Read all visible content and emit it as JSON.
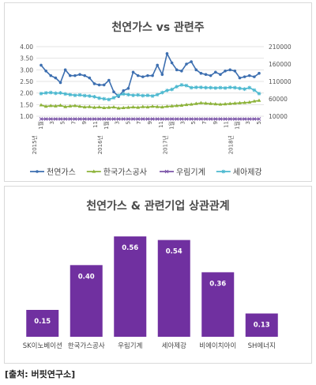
{
  "chart_data": [
    {
      "type": "line",
      "title": "천연가스 vs 관련주",
      "y_left": {
        "ticks": [
          "4.00",
          "3.50",
          "3.00",
          "2.50",
          "2.00",
          "1.50",
          "1.00"
        ],
        "min": 1.0,
        "max": 4.0
      },
      "y_right": {
        "ticks": [
          "210000",
          "160000",
          "110000",
          "60000",
          "10000"
        ],
        "min": 10000,
        "max": 210000
      },
      "x_tick_labels": [
        "1월",
        "3",
        "5",
        "7",
        "9",
        "11",
        "1월",
        "3",
        "5",
        "7",
        "9",
        "11",
        "1월",
        "3",
        "5",
        "7",
        "9",
        "11",
        "1월",
        "3",
        "5"
      ],
      "year_labels": [
        {
          "label": "2015년",
          "index": 0
        },
        {
          "label": "2016년",
          "index": 12
        },
        {
          "label": "2017년",
          "index": 24
        },
        {
          "label": "2018년",
          "index": 36
        }
      ],
      "legend_position": "bottom",
      "series": [
        {
          "name": "천연가스",
          "axis": "left",
          "color": "#3d6fb0",
          "marker": "circle",
          "values": [
            3.2,
            2.95,
            2.75,
            2.65,
            2.45,
            3.0,
            2.75,
            2.75,
            2.8,
            2.75,
            2.65,
            2.4,
            2.35,
            2.35,
            2.55,
            2.05,
            1.85,
            2.1,
            2.2,
            2.9,
            2.75,
            2.7,
            2.75,
            2.75,
            3.2,
            2.8,
            3.7,
            3.3,
            3.0,
            2.95,
            3.25,
            3.35,
            3.0,
            2.85,
            2.8,
            2.75,
            2.9,
            2.8,
            2.95,
            3.0,
            2.95,
            2.65,
            2.7,
            2.75,
            2.7,
            2.85
          ]
        },
        {
          "name": "한국가스공사",
          "axis": "right",
          "color": "#8db33a",
          "marker": "triangle",
          "values": [
            42000,
            38000,
            40000,
            39000,
            41000,
            37000,
            39000,
            40000,
            38000,
            36000,
            37000,
            35000,
            36000,
            34000,
            35000,
            36000,
            33000,
            34000,
            35000,
            36000,
            35000,
            37000,
            36000,
            38000,
            37000,
            36000,
            38000,
            39000,
            40000,
            41000,
            43000,
            44000,
            46000,
            48000,
            47000,
            46000,
            45000,
            44000,
            45000,
            46000,
            47000,
            48000,
            49000,
            50000,
            53000,
            55000
          ]
        },
        {
          "name": "우림기계",
          "axis": "right",
          "color": "#7b55a8",
          "marker": "x",
          "values": [
            2000,
            2000,
            2000,
            2000,
            2000,
            2000,
            2000,
            2000,
            2000,
            2000,
            2000,
            2000,
            2000,
            2000,
            2000,
            2000,
            2000,
            2000,
            2000,
            2000,
            2000,
            2000,
            2000,
            2000,
            2000,
            2000,
            2000,
            2000,
            2000,
            2000,
            2000,
            2000,
            2000,
            2000,
            2000,
            2000,
            2000,
            2000,
            2000,
            2000,
            2000,
            2000,
            2000,
            2000,
            2000,
            2000
          ]
        },
        {
          "name": "세아제강",
          "axis": "right",
          "color": "#4bb8cf",
          "marker": "star",
          "values": [
            75000,
            77000,
            78000,
            76000,
            77000,
            74000,
            72000,
            70000,
            71000,
            69000,
            68000,
            66000,
            62000,
            60000,
            58000,
            63000,
            70000,
            74000,
            72000,
            70000,
            71000,
            69000,
            70000,
            68000,
            72000,
            78000,
            84000,
            87000,
            95000,
            100000,
            98000,
            92000,
            93000,
            93000,
            92000,
            92000,
            91000,
            92000,
            91000,
            93000,
            92000,
            90000,
            88000,
            92000,
            85000,
            75000
          ]
        }
      ]
    },
    {
      "type": "bar",
      "title": "천연가스 & 관련기업 상관관계",
      "categories": [
        "SK이노베이션",
        "한국가스공사",
        "우림기계",
        "세아제강",
        "비에이치아이",
        "SH에너지"
      ],
      "values": [
        0.15,
        0.4,
        0.56,
        0.54,
        0.36,
        0.13
      ],
      "value_labels": [
        "0.15",
        "0.40",
        "0.56",
        "0.54",
        "0.36",
        "0.13"
      ],
      "bar_color": "#7030a0",
      "ylim": [
        0,
        0.6
      ]
    }
  ],
  "source": "[출처: 버핏연구소]"
}
